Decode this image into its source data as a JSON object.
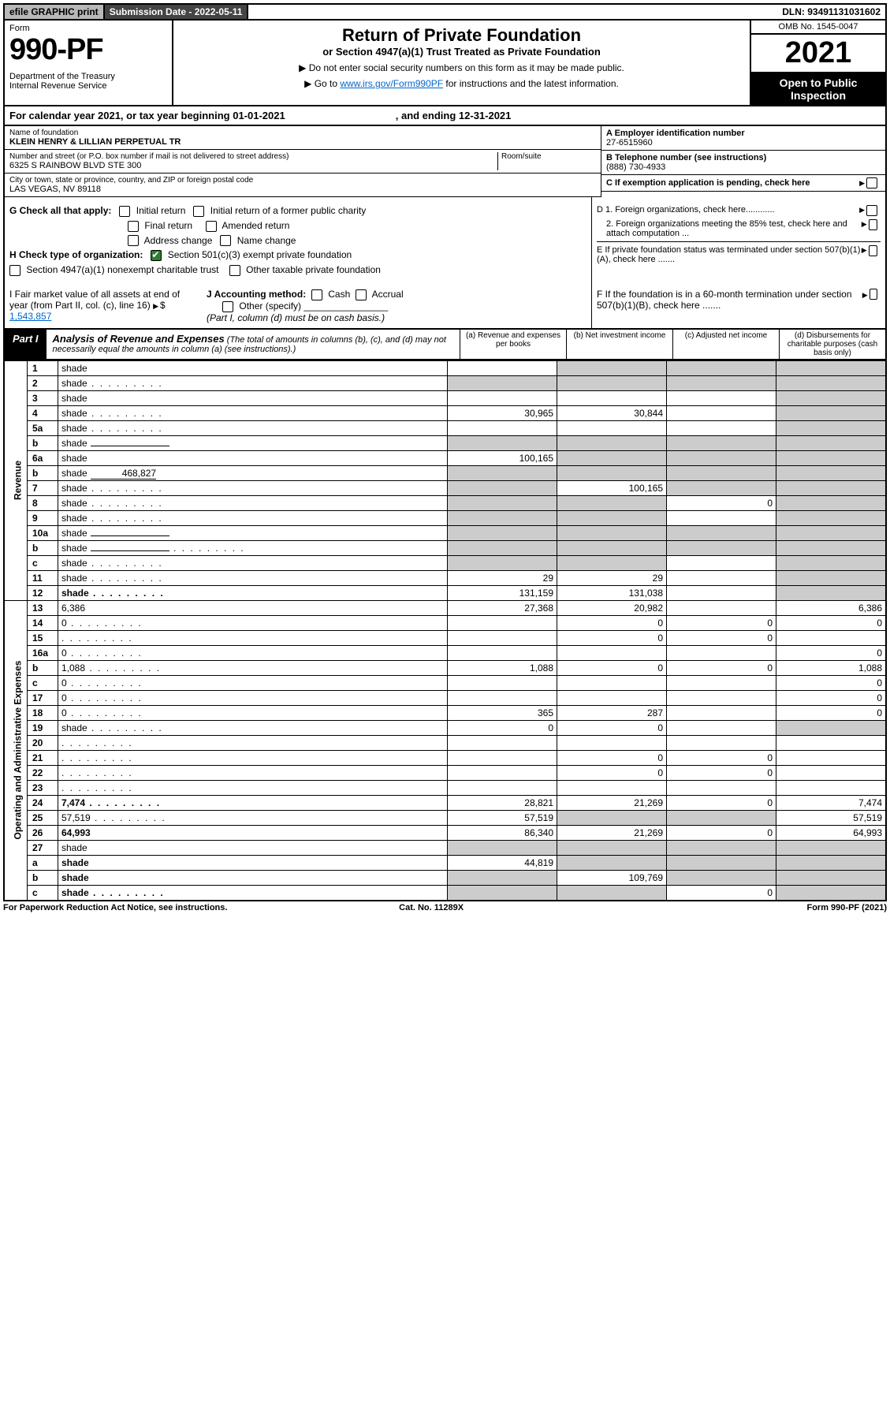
{
  "topbar": {
    "efile": "efile GRAPHIC print",
    "subdate_label": "Submission Date - 2022-05-11",
    "dln": "DLN: 93491131031602"
  },
  "header": {
    "form_label": "Form",
    "form_no": "990-PF",
    "dept": "Department of the Treasury\nInternal Revenue Service",
    "title": "Return of Private Foundation",
    "subtitle": "or Section 4947(a)(1) Trust Treated as Private Foundation",
    "note1": "▶ Do not enter social security numbers on this form as it may be made public.",
    "note2_pre": "▶ Go to ",
    "note2_link": "www.irs.gov/Form990PF",
    "note2_post": " for instructions and the latest information.",
    "omb": "OMB No. 1545-0047",
    "year": "2021",
    "open": "Open to Public Inspection"
  },
  "calyear": {
    "pre": "For calendar year 2021, or tax year beginning 01-01-2021",
    "end": ", and ending 12-31-2021"
  },
  "entity": {
    "name_label": "Name of foundation",
    "name": "KLEIN HENRY & LILLIAN PERPETUAL TR",
    "addr_label": "Number and street (or P.O. box number if mail is not delivered to street address)",
    "addr": "6325 S RAINBOW BLVD STE 300",
    "room_label": "Room/suite",
    "city_label": "City or town, state or province, country, and ZIP or foreign postal code",
    "city": "LAS VEGAS, NV  89118",
    "ein_label": "A Employer identification number",
    "ein": "27-6515960",
    "phone_label": "B Telephone number (see instructions)",
    "phone": "(888) 730-4933",
    "c_label": "C If exemption application is pending, check here"
  },
  "checks": {
    "g_label": "G Check all that apply:",
    "g_opts": [
      "Initial return",
      "Initial return of a former public charity",
      "Final return",
      "Amended return",
      "Address change",
      "Name change"
    ],
    "h_label": "H Check type of organization:",
    "h1": "Section 501(c)(3) exempt private foundation",
    "h2": "Section 4947(a)(1) nonexempt charitable trust",
    "h3": "Other taxable private foundation",
    "d1": "D 1. Foreign organizations, check here............",
    "d2": "2. Foreign organizations meeting the 85% test, check here and attach computation ...",
    "e": "E  If private foundation status was terminated under section 507(b)(1)(A), check here .......",
    "i_label": "I Fair market value of all assets at end of year (from Part II, col. (c), line 16)",
    "i_val": "1,543,857",
    "j_label": "J Accounting method:",
    "j_opts": [
      "Cash",
      "Accrual"
    ],
    "j_other": "Other (specify)",
    "j_note": "(Part I, column (d) must be on cash basis.)",
    "f": "F  If the foundation is in a 60-month termination under section 507(b)(1)(B), check here ......."
  },
  "part1": {
    "tab": "Part I",
    "title": "Analysis of Revenue and Expenses",
    "note": "(The total of amounts in columns (b), (c), and (d) may not necessarily equal the amounts in column (a) (see instructions).)",
    "col_a": "(a)  Revenue and expenses per books",
    "col_b": "(b)  Net investment income",
    "col_c": "(c)  Adjusted net income",
    "col_d": "(d)  Disbursements for charitable purposes (cash basis only)"
  },
  "side": {
    "rev": "Revenue",
    "exp": "Operating and Administrative Expenses"
  },
  "rows": [
    {
      "n": "1",
      "d": "shade",
      "a": "",
      "b": "shade",
      "c": "shade"
    },
    {
      "n": "2",
      "d": "shade",
      "a": "shade",
      "b": "shade",
      "c": "shade",
      "dots": true
    },
    {
      "n": "3",
      "d": "shade",
      "a": "",
      "b": "",
      "c": ""
    },
    {
      "n": "4",
      "d": "shade",
      "a": "30,965",
      "b": "30,844",
      "c": "",
      "dots": true
    },
    {
      "n": "5a",
      "d": "shade",
      "a": "",
      "b": "",
      "c": "",
      "dots": true
    },
    {
      "n": "b",
      "d": "shade",
      "a": "shade",
      "b": "shade",
      "c": "shade",
      "inline": true
    },
    {
      "n": "6a",
      "d": "shade",
      "a": "100,165",
      "b": "shade",
      "c": "shade"
    },
    {
      "n": "b",
      "d": "shade",
      "a": "shade",
      "b": "shade",
      "c": "shade",
      "inline": "468,827"
    },
    {
      "n": "7",
      "d": "shade",
      "a": "shade",
      "b": "100,165",
      "c": "shade",
      "dots": true
    },
    {
      "n": "8",
      "d": "shade",
      "a": "shade",
      "b": "shade",
      "c": "0",
      "dots": true
    },
    {
      "n": "9",
      "d": "shade",
      "a": "shade",
      "b": "shade",
      "c": "",
      "dots": true
    },
    {
      "n": "10a",
      "d": "shade",
      "a": "shade",
      "b": "shade",
      "c": "shade",
      "inline": true
    },
    {
      "n": "b",
      "d": "shade",
      "a": "shade",
      "b": "shade",
      "c": "shade",
      "inline": true,
      "dots": true
    },
    {
      "n": "c",
      "d": "shade",
      "a": "shade",
      "b": "shade",
      "c": "",
      "dots": true
    },
    {
      "n": "11",
      "d": "shade",
      "a": "29",
      "b": "29",
      "c": "",
      "dots": true
    },
    {
      "n": "12",
      "d": "shade",
      "a": "131,159",
      "b": "131,038",
      "c": "",
      "bold": true,
      "dots": true
    },
    {
      "n": "13",
      "d": "6,386",
      "a": "27,368",
      "b": "20,982",
      "c": ""
    },
    {
      "n": "14",
      "d": "0",
      "a": "",
      "b": "0",
      "c": "0",
      "dots": true
    },
    {
      "n": "15",
      "d": "",
      "a": "",
      "b": "0",
      "c": "0",
      "dots": true
    },
    {
      "n": "16a",
      "d": "0",
      "a": "",
      "b": "",
      "c": "",
      "dots": true
    },
    {
      "n": "b",
      "d": "1,088",
      "a": "1,088",
      "b": "0",
      "c": "0",
      "dots": true
    },
    {
      "n": "c",
      "d": "0",
      "a": "",
      "b": "",
      "c": "",
      "dots": true
    },
    {
      "n": "17",
      "d": "0",
      "a": "",
      "b": "",
      "c": "",
      "dots": true
    },
    {
      "n": "18",
      "d": "0",
      "a": "365",
      "b": "287",
      "c": "",
      "dots": true
    },
    {
      "n": "19",
      "d": "shade",
      "a": "0",
      "b": "0",
      "c": "",
      "dots": true
    },
    {
      "n": "20",
      "d": "",
      "a": "",
      "b": "",
      "c": "",
      "dots": true
    },
    {
      "n": "21",
      "d": "",
      "a": "",
      "b": "0",
      "c": "0",
      "dots": true
    },
    {
      "n": "22",
      "d": "",
      "a": "",
      "b": "0",
      "c": "0",
      "dots": true
    },
    {
      "n": "23",
      "d": "",
      "a": "",
      "b": "",
      "c": "",
      "dots": true
    },
    {
      "n": "24",
      "d": "7,474",
      "a": "28,821",
      "b": "21,269",
      "c": "0",
      "bold": true,
      "dots": true
    },
    {
      "n": "25",
      "d": "57,519",
      "a": "57,519",
      "b": "shade",
      "c": "shade",
      "dots": true
    },
    {
      "n": "26",
      "d": "64,993",
      "a": "86,340",
      "b": "21,269",
      "c": "0",
      "bold": true
    },
    {
      "n": "27",
      "d": "shade",
      "a": "shade",
      "b": "shade",
      "c": "shade"
    },
    {
      "n": "a",
      "d": "shade",
      "a": "44,819",
      "b": "shade",
      "c": "shade",
      "bold": true
    },
    {
      "n": "b",
      "d": "shade",
      "a": "shade",
      "b": "109,769",
      "c": "shade",
      "bold": true
    },
    {
      "n": "c",
      "d": "shade",
      "a": "shade",
      "b": "shade",
      "c": "0",
      "bold": true,
      "dots": true
    }
  ],
  "footer": {
    "left": "For Paperwork Reduction Act Notice, see instructions.",
    "mid": "Cat. No. 11289X",
    "right": "Form 990-PF (2021)"
  }
}
